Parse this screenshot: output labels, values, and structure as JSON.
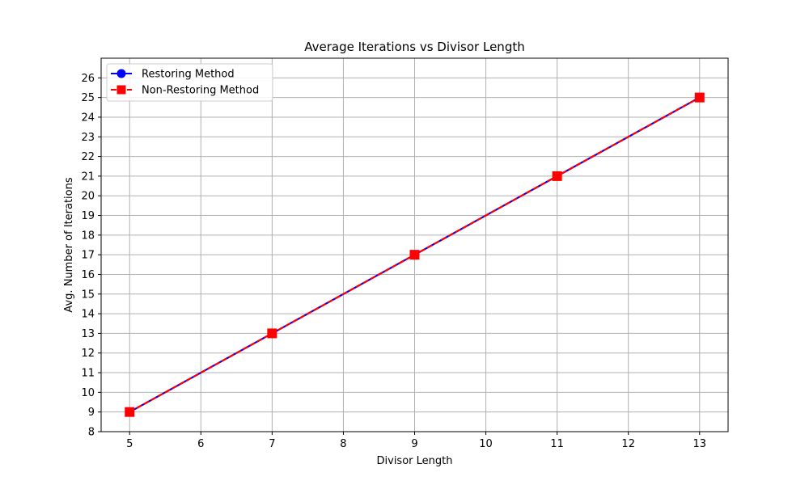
{
  "chart_data": {
    "type": "line",
    "title": "Average Iterations vs Divisor Length",
    "xlabel": "Divisor Length",
    "ylabel": "Avg. Number of Iterations",
    "xlim": [
      4.6,
      13.4
    ],
    "ylim": [
      8,
      27
    ],
    "xticks": [
      5,
      6,
      7,
      8,
      9,
      10,
      11,
      12,
      13
    ],
    "yticks": [
      8,
      9,
      10,
      11,
      12,
      13,
      14,
      15,
      16,
      17,
      18,
      19,
      20,
      21,
      22,
      23,
      24,
      25,
      26
    ],
    "grid": true,
    "legend_position": "top-left",
    "series": [
      {
        "name": "Restoring Method",
        "x": [
          5,
          7,
          9,
          11,
          13
        ],
        "y": [
          9,
          13,
          17,
          21,
          25
        ],
        "color": "#0000ff",
        "marker": "circle",
        "line_style": "solid"
      },
      {
        "name": "Non-Restoring Method",
        "x": [
          5,
          7,
          9,
          11,
          13
        ],
        "y": [
          9,
          13,
          17,
          21,
          25
        ],
        "color": "#ff0000",
        "marker": "square",
        "line_style": "dashed"
      }
    ]
  }
}
